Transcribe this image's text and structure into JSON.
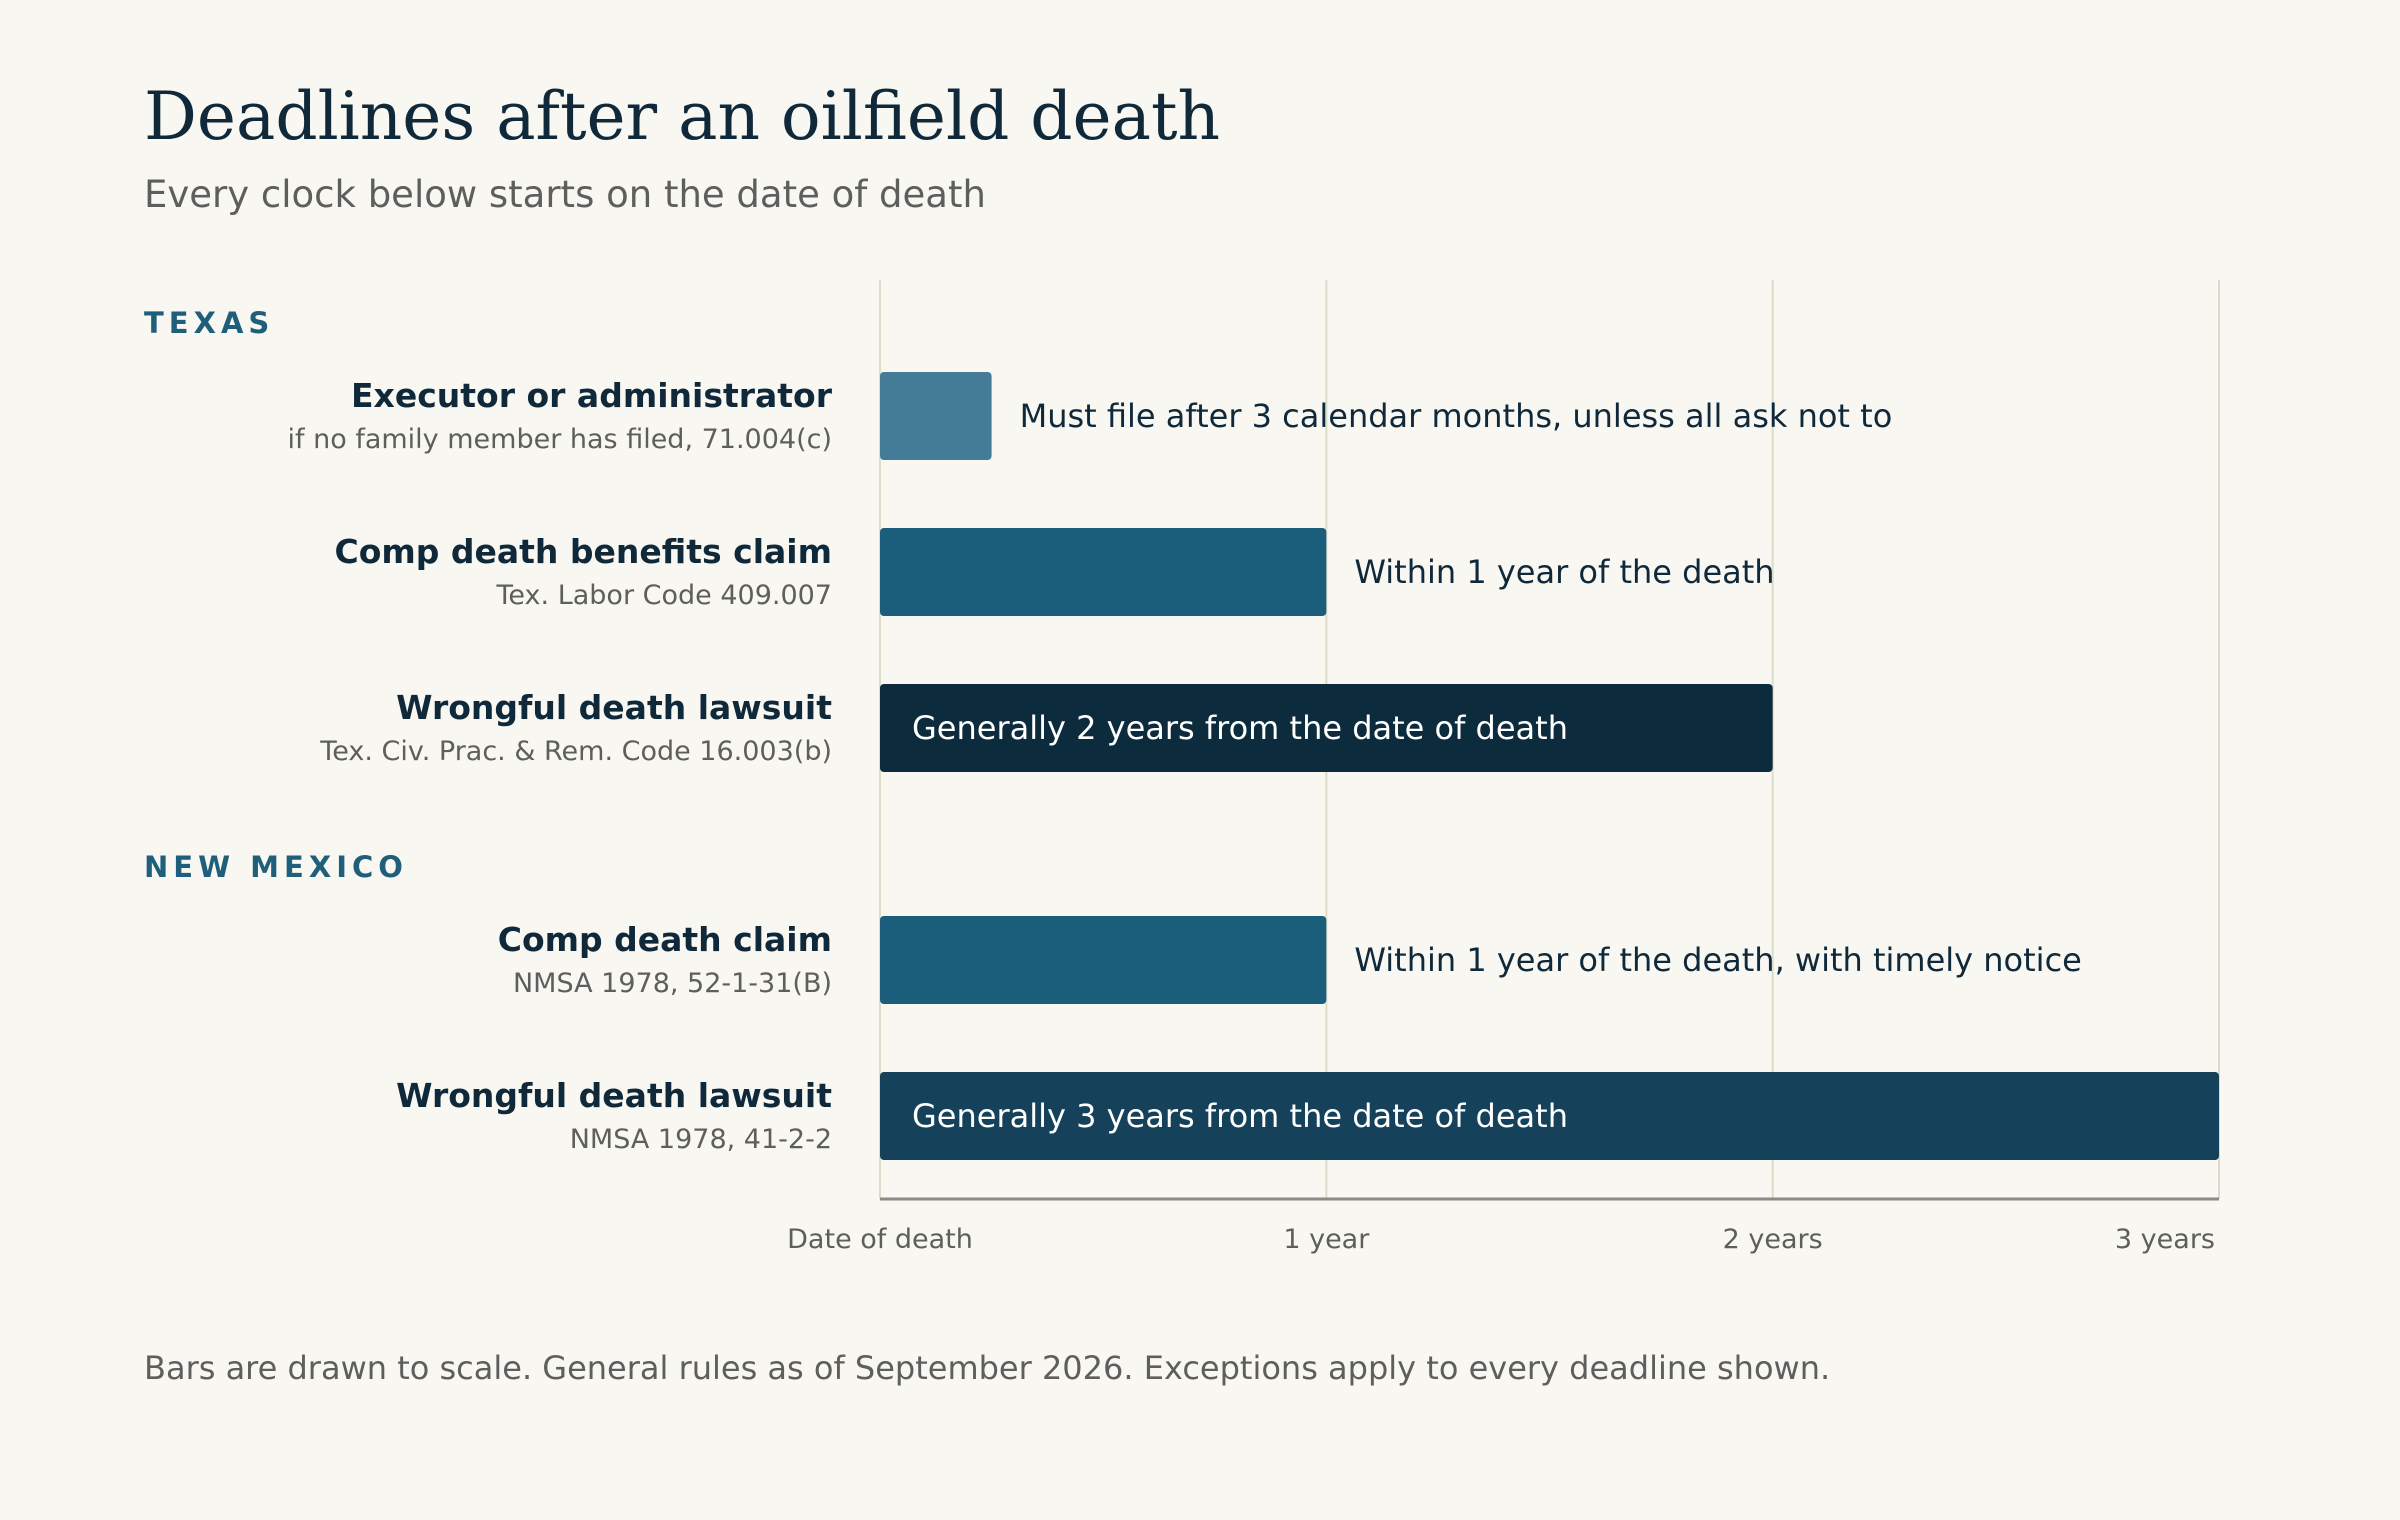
{
  "title": "Deadlines after an oilfield death",
  "subtitle": "Every clock below starts on the date of death",
  "sections": [
    {
      "name": "TEXAS"
    },
    {
      "name": "NEW MEXICO"
    }
  ],
  "rows": [
    {
      "name": "Executor or administrator",
      "citation": "if no family member has filed, 71.004(c)",
      "bar_label": "Must file after 3 calendar months, unless all ask not to"
    },
    {
      "name": "Comp death benefits claim",
      "citation": "Tex. Labor Code 409.007",
      "bar_label": "Within 1 year of the death"
    },
    {
      "name": "Wrongful death lawsuit",
      "citation": "Tex. Civ. Prac. & Rem. Code 16.003(b)",
      "bar_label": "Generally 2 years from the date of death"
    },
    {
      "name": "Comp death claim",
      "citation": "NMSA 1978, 52-1-31(B)",
      "bar_label": "Within 1 year of the death, with timely notice"
    },
    {
      "name": "Wrongful death lawsuit",
      "citation": "NMSA 1978, 41-2-2",
      "bar_label": "Generally 3 years from the date of death"
    }
  ],
  "footnote": "Bars are drawn to scale. General rules as of September 2026. Exceptions apply to every deadline shown.",
  "colors": {
    "background": "#f8f7f2",
    "heading": "#10293a",
    "section_label": "#1f5f7c",
    "grid": "#dcdccb",
    "axis": "#8a8a86"
  },
  "chart_data": {
    "type": "bar",
    "orientation": "horizontal",
    "xlim": [
      0,
      3
    ],
    "x_unit": "years",
    "x_ticks": [
      {
        "value": 0,
        "label": "Date of death"
      },
      {
        "value": 1,
        "label": "1 year"
      },
      {
        "value": 2,
        "label": "2 years"
      },
      {
        "value": 3,
        "label": "3 years"
      }
    ],
    "grid": true,
    "bars": [
      {
        "row": 0,
        "value": 0.25,
        "color": "#447b97",
        "label_position": "outside",
        "label_color": "#10293a"
      },
      {
        "row": 1,
        "value": 1,
        "color": "#1a5e7b",
        "label_position": "outside",
        "label_color": "#10293a"
      },
      {
        "row": 2,
        "value": 2,
        "color": "#0c2b3c",
        "label_position": "inside",
        "label_color": "#ffffff"
      },
      {
        "row": 3,
        "value": 1,
        "color": "#1a5e7b",
        "label_position": "outside",
        "label_color": "#10293a"
      },
      {
        "row": 4,
        "value": 3,
        "color": "#15425a",
        "label_position": "inside",
        "label_color": "#ffffff"
      }
    ]
  }
}
